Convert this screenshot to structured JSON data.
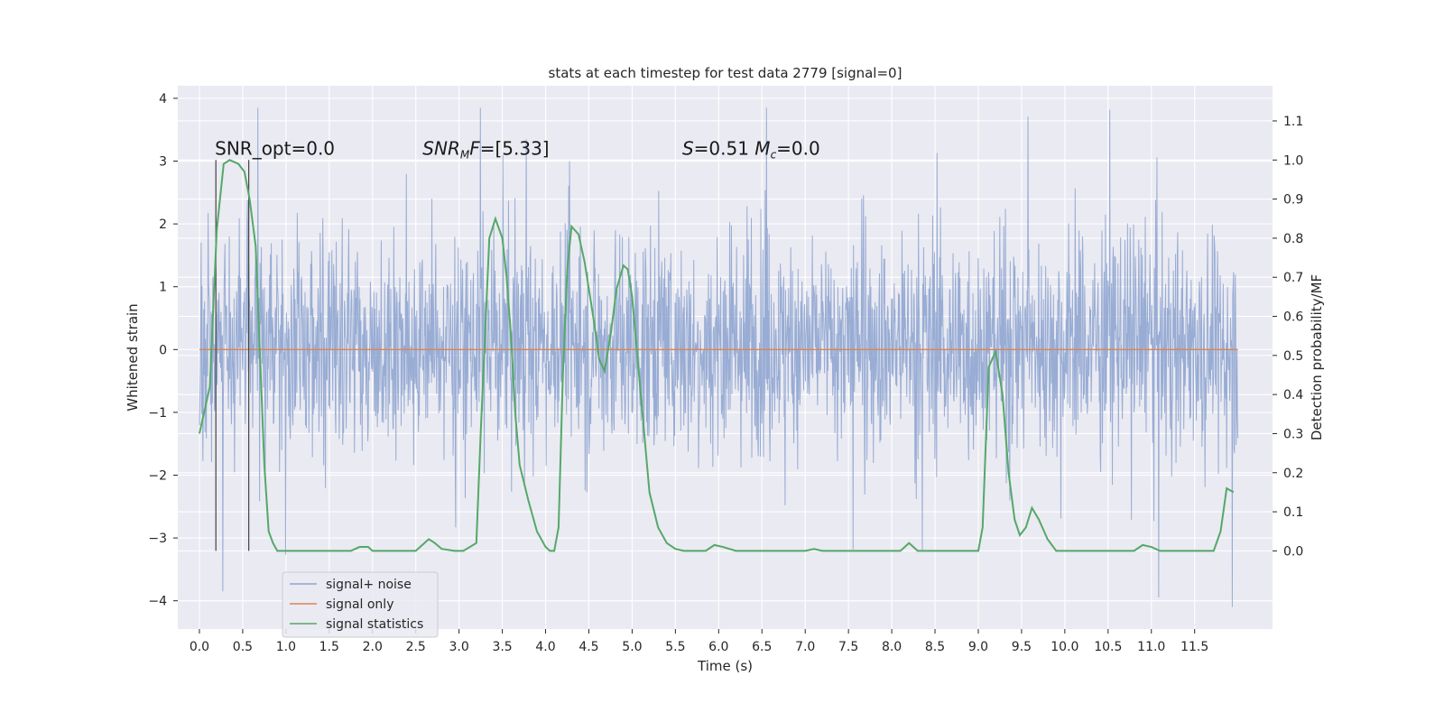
{
  "chart_data": {
    "type": "line",
    "title": "stats at each timestep for test data 2779 [signal=0]",
    "xlabel": "Time (s)",
    "ylabel": "Whitened strain",
    "ylabel_right": "Detection probability/MF",
    "xlim": [
      -0.25,
      12.4
    ],
    "ylim": [
      -4.45,
      4.2
    ],
    "ylim_right": [
      -0.2,
      1.19
    ],
    "grid": true,
    "xticks": [
      0.0,
      0.5,
      1.0,
      1.5,
      2.0,
      2.5,
      3.0,
      3.5,
      4.0,
      4.5,
      5.0,
      5.5,
      6.0,
      6.5,
      7.0,
      7.5,
      8.0,
      8.5,
      9.0,
      9.5,
      10.0,
      10.5,
      11.0,
      11.5
    ],
    "xtick_labels": [
      "0.0",
      "0.5",
      "1.0",
      "1.5",
      "2.0",
      "2.5",
      "3.0",
      "3.5",
      "4.0",
      "4.5",
      "5.0",
      "5.5",
      "6.0",
      "6.5",
      "7.0",
      "7.5",
      "8.0",
      "8.5",
      "9.0",
      "9.5",
      "10.0",
      "10.5",
      "11.0",
      "11.5"
    ],
    "yticks": [
      -4,
      -3,
      -2,
      -1,
      0,
      1,
      2,
      3,
      4
    ],
    "ytick_labels": [
      "−4",
      "−3",
      "−2",
      "−1",
      "0",
      "1",
      "2",
      "3",
      "4"
    ],
    "yticks_right": [
      0.0,
      0.1,
      0.2,
      0.3,
      0.4,
      0.5,
      0.6,
      0.7,
      0.8,
      0.9,
      1.0,
      1.1
    ],
    "ytick_labels_right": [
      "0.0",
      "0.1",
      "0.2",
      "0.3",
      "0.4",
      "0.5",
      "0.6",
      "0.7",
      "0.8",
      "0.9",
      "1.0",
      "1.1"
    ],
    "annotations": [
      {
        "text": "SNR_opt=0.0",
        "x": 0.2,
        "y": 3.0
      },
      {
        "text": "SNR_MF=[5.33]",
        "x": 2.6,
        "y": 3.0
      },
      {
        "text": "S=0.51   M_c=0.0",
        "x": 5.6,
        "y": 3.0
      }
    ],
    "vertical_markers": [
      0.19,
      0.57
    ],
    "legend": {
      "placement": "lower-left",
      "entries": [
        "signal+ noise",
        "signal only",
        "signal statistics"
      ]
    },
    "series": [
      {
        "name": "signal+ noise",
        "color": "#8fa5d0",
        "kind": "noise",
        "x_range": [
          0.0,
          12.0
        ],
        "typical_band": [
          -1.4,
          1.15
        ],
        "approx_range": [
          -4.1,
          3.85
        ]
      },
      {
        "name": "signal only",
        "color": "#dd8452",
        "x": [
          0.0,
          12.0
        ],
        "y": [
          0.0,
          0.0
        ]
      },
      {
        "name": "signal statistics",
        "color": "#55a868",
        "axis": "right",
        "x": [
          0.0,
          0.12,
          0.2,
          0.28,
          0.35,
          0.45,
          0.52,
          0.58,
          0.65,
          0.7,
          0.75,
          0.8,
          0.85,
          0.9,
          1.0,
          1.5,
          1.75,
          1.85,
          1.95,
          2.0,
          2.5,
          2.6,
          2.65,
          2.72,
          2.8,
          2.95,
          3.05,
          3.2,
          3.25,
          3.3,
          3.35,
          3.42,
          3.5,
          3.55,
          3.6,
          3.65,
          3.7,
          3.8,
          3.9,
          4.0,
          4.05,
          4.1,
          4.15,
          4.2,
          4.25,
          4.3,
          4.38,
          4.45,
          4.55,
          4.62,
          4.68,
          4.75,
          4.82,
          4.9,
          4.95,
          5.0,
          5.1,
          5.2,
          5.3,
          5.4,
          5.5,
          5.6,
          5.7,
          5.85,
          5.95,
          6.05,
          6.2,
          6.5,
          7.0,
          7.1,
          7.2,
          7.5,
          8.1,
          8.2,
          8.3,
          8.5,
          9.0,
          9.05,
          9.12,
          9.2,
          9.28,
          9.35,
          9.42,
          9.48,
          9.55,
          9.62,
          9.7,
          9.8,
          9.9,
          10.5,
          10.8,
          10.9,
          11.0,
          11.1,
          11.5,
          11.72,
          11.8,
          11.87,
          11.95
        ],
        "y": [
          0.3,
          0.42,
          0.82,
          0.99,
          1.0,
          0.99,
          0.97,
          0.9,
          0.78,
          0.5,
          0.22,
          0.05,
          0.02,
          0.0,
          0.0,
          0.0,
          0.0,
          0.01,
          0.01,
          0.0,
          0.0,
          0.02,
          0.03,
          0.02,
          0.005,
          0.0,
          0.0,
          0.02,
          0.3,
          0.55,
          0.8,
          0.85,
          0.8,
          0.7,
          0.55,
          0.35,
          0.22,
          0.13,
          0.05,
          0.01,
          0.0,
          0.0,
          0.06,
          0.45,
          0.72,
          0.83,
          0.81,
          0.74,
          0.6,
          0.49,
          0.46,
          0.55,
          0.67,
          0.73,
          0.72,
          0.65,
          0.4,
          0.15,
          0.06,
          0.02,
          0.005,
          0.0,
          0.0,
          0.0,
          0.015,
          0.01,
          0.0,
          0.0,
          0.0,
          0.005,
          0.0,
          0.0,
          0.0,
          0.02,
          0.0,
          0.0,
          0.0,
          0.06,
          0.47,
          0.51,
          0.4,
          0.2,
          0.08,
          0.04,
          0.06,
          0.11,
          0.08,
          0.03,
          0.0,
          0.0,
          0.0,
          0.015,
          0.01,
          0.0,
          0.0,
          0.0,
          0.05,
          0.16,
          0.15
        ]
      }
    ]
  }
}
